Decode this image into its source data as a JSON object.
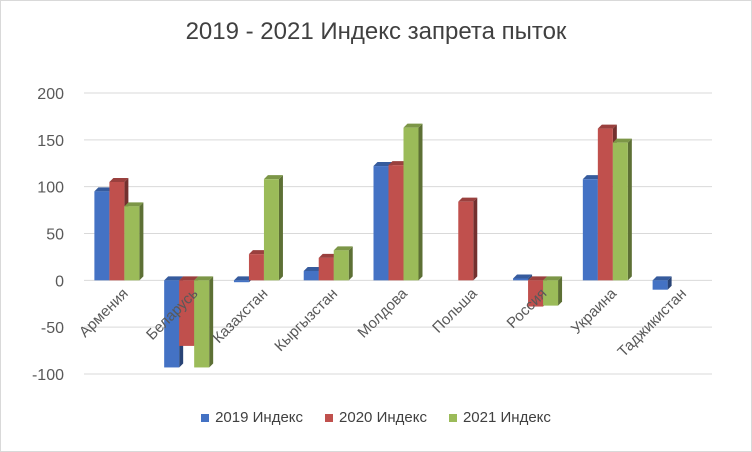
{
  "chart_data": {
    "type": "bar",
    "title": "2019 - 2021 Индекс запрета пыток",
    "xlabel": "",
    "ylabel": "",
    "ylim": [
      -100,
      200
    ],
    "yticks": [
      "200",
      "150",
      "100",
      "50",
      "0",
      "-50",
      "-100"
    ],
    "grid": true,
    "legend_position": "bottom",
    "categories": [
      "Армения",
      "Беларусь",
      "Казахстан",
      "Кыргызстан",
      "Молдова",
      "Польша",
      "Россия",
      "Украина",
      "Таджикистан"
    ],
    "series": [
      {
        "name": "2019 Индекс",
        "color": "#4472c4",
        "values": [
          95,
          -93,
          -2,
          10,
          122,
          null,
          2,
          108,
          -10
        ]
      },
      {
        "name": "2020 Индекс",
        "color": "#c0504d",
        "values": [
          105,
          -70,
          28,
          24,
          123,
          84,
          -28,
          162,
          null
        ]
      },
      {
        "name": "2021 Индекс",
        "color": "#9bbb59",
        "values": [
          79,
          -93,
          108,
          32,
          163,
          null,
          -27,
          147,
          null
        ]
      }
    ]
  }
}
